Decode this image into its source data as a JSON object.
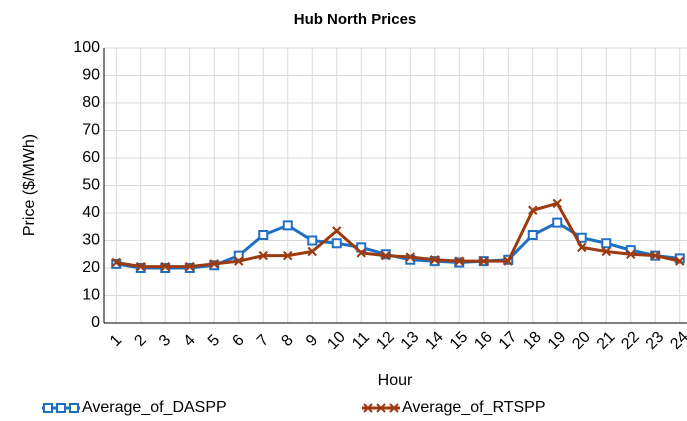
{
  "chart_data": {
    "type": "line",
    "title": "Hub North Prices",
    "x_label": "Hour",
    "y_label": "Price ($/MWh)",
    "categories": [
      "1",
      "2",
      "3",
      "4",
      "5",
      "6",
      "7",
      "8",
      "9",
      "10",
      "11",
      "12",
      "13",
      "14",
      "15",
      "16",
      "17",
      "18",
      "19",
      "20",
      "21",
      "22",
      "23",
      "24"
    ],
    "series": [
      {
        "name": "Average_of_DASPP",
        "color": "#1f6fc5",
        "marker": "square",
        "values": [
          21.5,
          20,
          20,
          20,
          21,
          24.5,
          32,
          35.5,
          30,
          29,
          27.5,
          25,
          23,
          22.5,
          22,
          22.5,
          23,
          32,
          36.5,
          31,
          29,
          26.5,
          24.5,
          23.5
        ]
      },
      {
        "name": "Average_of_RTSPP",
        "color": "#9c3a10",
        "marker": "x",
        "values": [
          22,
          20.5,
          20.5,
          20.5,
          21.5,
          22.5,
          24.5,
          24.5,
          26,
          33.5,
          25.5,
          24.5,
          24,
          23,
          22.5,
          22.5,
          22.5,
          41,
          43.5,
          27.5,
          26,
          25,
          24.5,
          22.5
        ]
      }
    ],
    "ylim": [
      0,
      100
    ],
    "yticks": [
      0,
      10,
      20,
      30,
      40,
      50,
      60,
      70,
      80,
      90,
      100
    ],
    "grid": true
  }
}
